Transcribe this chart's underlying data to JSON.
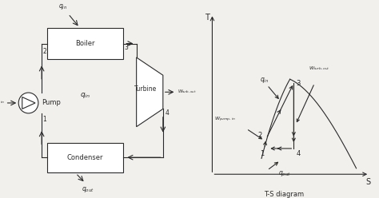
{
  "bg_color": "#f2f0ed",
  "line_color": "#2a2a2a",
  "title": "T-S diagram",
  "left_labels": {
    "boiler": "Boiler",
    "condenser": "Condenser",
    "pump": "Pump",
    "turbine": "Turbine"
  }
}
